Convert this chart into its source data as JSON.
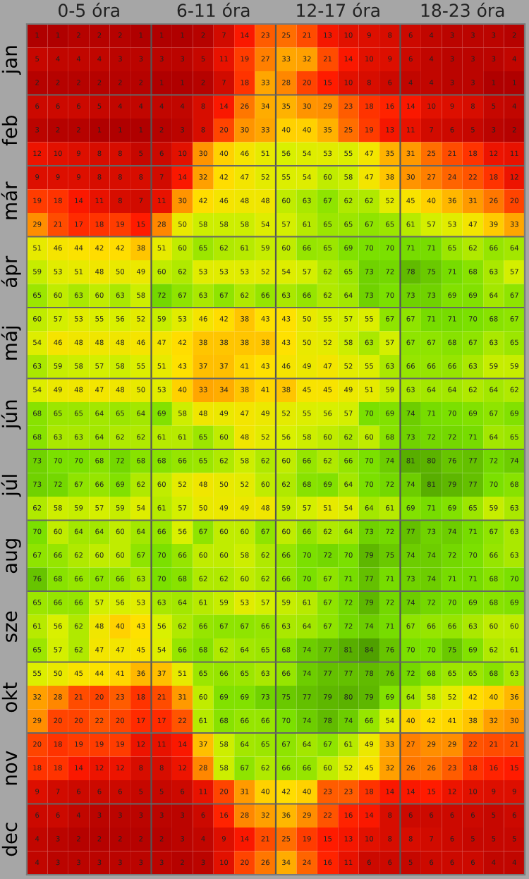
{
  "chart_data": {
    "type": "heatmap",
    "categories": [
      null,
      null,
      null,
      null,
      null,
      null,
      null,
      null,
      null,
      null,
      null,
      null,
      null,
      null,
      null,
      null,
      null,
      null,
      null,
      null,
      null,
      null,
      null,
      null
    ],
    "y_categories": [
      null,
      "jan",
      null,
      null,
      "feb",
      null,
      null,
      "már",
      null,
      null,
      "ápr",
      null,
      null,
      "máj",
      null,
      null,
      "jún",
      null,
      null,
      "júl",
      null,
      null,
      "aug",
      null,
      null,
      "sze",
      null,
      null,
      "okt",
      null,
      null,
      "nov",
      null,
      null,
      "dec",
      null
    ],
    "annotations": [
      "0-5 óra",
      "6-11 óra",
      "12-17 óra",
      "18-23 óra"
    ],
    "data_labels": true,
    "cells": [
      [
        1,
        1,
        2,
        2,
        2,
        1,
        1,
        1,
        2,
        7,
        14,
        23,
        25,
        21,
        13,
        10,
        9,
        8,
        6,
        4,
        3,
        3,
        3,
        2
      ],
      [
        5,
        4,
        4,
        4,
        3,
        3,
        3,
        3,
        5,
        11,
        19,
        27,
        33,
        32,
        21,
        14,
        10,
        9,
        6,
        4,
        3,
        3,
        3,
        4
      ],
      [
        2,
        2,
        2,
        2,
        2,
        2,
        1,
        1,
        2,
        7,
        18,
        33,
        28,
        20,
        15,
        10,
        8,
        6,
        4,
        4,
        3,
        3,
        1,
        1
      ],
      [
        6,
        6,
        6,
        5,
        4,
        4,
        4,
        4,
        8,
        14,
        26,
        34,
        35,
        30,
        29,
        23,
        18,
        16,
        14,
        10,
        9,
        8,
        5,
        4
      ],
      [
        3,
        2,
        2,
        1,
        1,
        1,
        2,
        3,
        8,
        20,
        30,
        33,
        40,
        40,
        35,
        25,
        19,
        13,
        11,
        7,
        6,
        5,
        3,
        2
      ],
      [
        12,
        10,
        9,
        8,
        8,
        5,
        6,
        10,
        30,
        40,
        46,
        51,
        56,
        54,
        53,
        55,
        47,
        35,
        31,
        25,
        21,
        18,
        12,
        11
      ],
      [
        9,
        9,
        9,
        8,
        8,
        8,
        7,
        14,
        32,
        42,
        47,
        52,
        55,
        54,
        60,
        58,
        47,
        38,
        30,
        27,
        24,
        22,
        18,
        12
      ],
      [
        19,
        18,
        14,
        11,
        8,
        7,
        11,
        30,
        42,
        46,
        48,
        48,
        60,
        63,
        67,
        62,
        62,
        52,
        45,
        40,
        36,
        31,
        26,
        20
      ],
      [
        29,
        21,
        17,
        18,
        19,
        15,
        28,
        50,
        58,
        58,
        58,
        54,
        57,
        61,
        65,
        65,
        67,
        65,
        61,
        57,
        53,
        47,
        39,
        33
      ],
      [
        51,
        46,
        44,
        42,
        42,
        38,
        51,
        60,
        65,
        62,
        61,
        59,
        60,
        66,
        65,
        69,
        70,
        70,
        71,
        71,
        65,
        62,
        66,
        64
      ],
      [
        59,
        53,
        51,
        48,
        50,
        49,
        60,
        62,
        53,
        53,
        53,
        52,
        54,
        57,
        62,
        65,
        73,
        72,
        78,
        75,
        71,
        68,
        63,
        57
      ],
      [
        65,
        60,
        63,
        60,
        63,
        58,
        72,
        67,
        63,
        67,
        62,
        66,
        63,
        66,
        62,
        64,
        73,
        70,
        73,
        73,
        69,
        69,
        64,
        67
      ],
      [
        60,
        57,
        53,
        55,
        56,
        52,
        59,
        53,
        46,
        42,
        38,
        43,
        43,
        50,
        55,
        57,
        55,
        67,
        67,
        71,
        71,
        70,
        68,
        67
      ],
      [
        54,
        46,
        48,
        48,
        48,
        46,
        47,
        42,
        38,
        38,
        38,
        38,
        43,
        50,
        52,
        58,
        63,
        57,
        67,
        67,
        68,
        67,
        63,
        65
      ],
      [
        63,
        59,
        58,
        57,
        58,
        55,
        51,
        43,
        37,
        37,
        41,
        43,
        46,
        49,
        47,
        52,
        55,
        63,
        66,
        66,
        66,
        63,
        59,
        59
      ],
      [
        54,
        49,
        48,
        47,
        48,
        50,
        53,
        40,
        33,
        34,
        38,
        41,
        38,
        45,
        45,
        49,
        51,
        59,
        63,
        64,
        64,
        62,
        64,
        62
      ],
      [
        68,
        65,
        65,
        64,
        65,
        64,
        69,
        58,
        48,
        49,
        47,
        49,
        52,
        55,
        56,
        57,
        70,
        69,
        74,
        71,
        70,
        69,
        67,
        69
      ],
      [
        68,
        63,
        63,
        64,
        62,
        62,
        61,
        61,
        65,
        60,
        48,
        52,
        56,
        58,
        60,
        62,
        60,
        68,
        73,
        72,
        72,
        71,
        64,
        65
      ],
      [
        73,
        70,
        70,
        68,
        72,
        68,
        68,
        66,
        65,
        62,
        58,
        62,
        60,
        66,
        62,
        66,
        70,
        74,
        81,
        80,
        76,
        77,
        72,
        74
      ],
      [
        73,
        72,
        67,
        66,
        69,
        62,
        60,
        52,
        48,
        50,
        52,
        60,
        62,
        68,
        69,
        64,
        70,
        72,
        74,
        81,
        79,
        77,
        70,
        68
      ],
      [
        62,
        58,
        59,
        57,
        59,
        54,
        61,
        57,
        50,
        49,
        49,
        48,
        59,
        57,
        51,
        54,
        64,
        61,
        69,
        71,
        69,
        65,
        59,
        63
      ],
      [
        70,
        60,
        64,
        64,
        60,
        64,
        66,
        56,
        67,
        60,
        60,
        67,
        60,
        66,
        62,
        64,
        73,
        72,
        77,
        73,
        74,
        71,
        67,
        63
      ],
      [
        67,
        66,
        62,
        60,
        60,
        67,
        70,
        66,
        60,
        60,
        58,
        62,
        66,
        70,
        72,
        70,
        79,
        75,
        74,
        74,
        72,
        70,
        66,
        63
      ],
      [
        76,
        68,
        66,
        67,
        66,
        63,
        70,
        68,
        62,
        62,
        60,
        62,
        66,
        70,
        67,
        71,
        77,
        71,
        73,
        74,
        71,
        71,
        68,
        70
      ],
      [
        65,
        66,
        66,
        57,
        56,
        53,
        63,
        64,
        61,
        59,
        53,
        57,
        59,
        61,
        67,
        72,
        79,
        72,
        74,
        72,
        70,
        69,
        68,
        69
      ],
      [
        61,
        56,
        62,
        48,
        40,
        43,
        56,
        62,
        66,
        67,
        67,
        66,
        63,
        64,
        67,
        72,
        74,
        71,
        67,
        66,
        66,
        63,
        60,
        60
      ],
      [
        65,
        57,
        62,
        47,
        47,
        45,
        54,
        66,
        68,
        62,
        64,
        65,
        68,
        74,
        77,
        81,
        84,
        76,
        70,
        70,
        75,
        69,
        62,
        61
      ],
      [
        55,
        50,
        45,
        44,
        41,
        36,
        37,
        51,
        65,
        66,
        65,
        63,
        66,
        74,
        77,
        77,
        78,
        76,
        72,
        68,
        65,
        65,
        68,
        63
      ],
      [
        32,
        28,
        21,
        20,
        23,
        18,
        21,
        31,
        60,
        69,
        69,
        73,
        75,
        77,
        79,
        80,
        79,
        69,
        64,
        58,
        52,
        42,
        40,
        36
      ],
      [
        29,
        20,
        20,
        22,
        20,
        17,
        17,
        22,
        61,
        68,
        66,
        66,
        70,
        74,
        78,
        74,
        66,
        54,
        40,
        42,
        41,
        38,
        32,
        30
      ],
      [
        20,
        18,
        19,
        19,
        19,
        12,
        11,
        14,
        37,
        58,
        64,
        65,
        67,
        64,
        67,
        61,
        49,
        33,
        27,
        29,
        29,
        22,
        21,
        21
      ],
      [
        18,
        18,
        14,
        12,
        12,
        8,
        8,
        12,
        28,
        58,
        67,
        62,
        66,
        66,
        60,
        52,
        45,
        32,
        26,
        26,
        23,
        18,
        16,
        15
      ],
      [
        9,
        7,
        6,
        6,
        6,
        5,
        5,
        6,
        11,
        20,
        31,
        40,
        42,
        40,
        23,
        23,
        18,
        14,
        14,
        15,
        12,
        10,
        9,
        9
      ],
      [
        6,
        6,
        4,
        3,
        3,
        3,
        3,
        3,
        6,
        16,
        28,
        32,
        36,
        29,
        22,
        16,
        14,
        8,
        6,
        6,
        6,
        6,
        5,
        6
      ],
      [
        4,
        3,
        2,
        2,
        2,
        2,
        2,
        3,
        4,
        9,
        14,
        21,
        25,
        19,
        15,
        13,
        10,
        8,
        8,
        7,
        6,
        5,
        5,
        5
      ],
      [
        4,
        3,
        3,
        3,
        3,
        3,
        3,
        2,
        3,
        10,
        20,
        26,
        34,
        24,
        16,
        11,
        6,
        6,
        5,
        6,
        6,
        6,
        4,
        4
      ]
    ]
  }
}
